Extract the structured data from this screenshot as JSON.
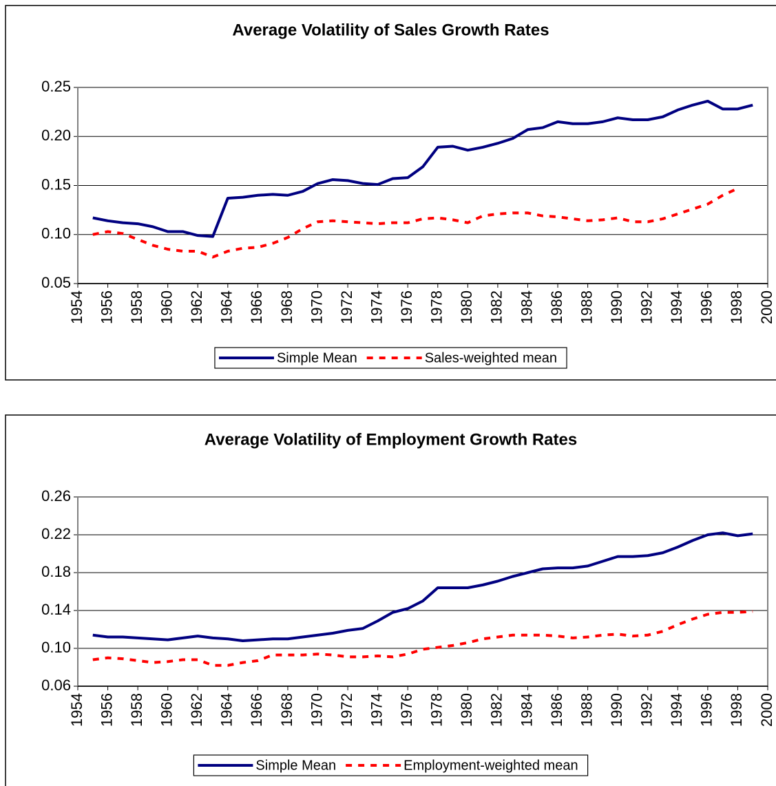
{
  "chart_data": [
    {
      "type": "line",
      "title": "Average Volatility of Sales Growth Rates",
      "x": [
        1955,
        1956,
        1957,
        1958,
        1959,
        1960,
        1961,
        1962,
        1963,
        1964,
        1965,
        1966,
        1967,
        1968,
        1969,
        1970,
        1971,
        1972,
        1973,
        1974,
        1975,
        1976,
        1977,
        1978,
        1979,
        1980,
        1981,
        1982,
        1983,
        1984,
        1985,
        1986,
        1987,
        1988,
        1989,
        1990,
        1991,
        1992,
        1993,
        1994,
        1995,
        1996,
        1997,
        1998,
        1999
      ],
      "series": [
        {
          "name": "Simple Mean",
          "color": "#000080",
          "style": "solid",
          "values": [
            0.117,
            0.114,
            0.112,
            0.111,
            0.108,
            0.103,
            0.103,
            0.099,
            0.098,
            0.137,
            0.138,
            0.14,
            0.141,
            0.14,
            0.144,
            0.152,
            0.156,
            0.155,
            0.152,
            0.151,
            0.157,
            0.158,
            0.169,
            0.189,
            0.19,
            0.186,
            0.189,
            0.193,
            0.198,
            0.207,
            0.209,
            0.215,
            0.213,
            0.213,
            0.215,
            0.219,
            0.217,
            0.217,
            0.22,
            0.227,
            0.232,
            0.236,
            0.228,
            0.228,
            0.232
          ]
        },
        {
          "name": "Sales-weighted mean",
          "color": "#ff0000",
          "style": "dashed",
          "values": [
            0.1,
            0.103,
            0.101,
            0.095,
            0.089,
            0.085,
            0.083,
            0.083,
            0.077,
            0.083,
            0.086,
            0.087,
            0.091,
            0.097,
            0.106,
            0.113,
            0.114,
            0.113,
            0.112,
            0.111,
            0.112,
            0.112,
            0.116,
            0.117,
            0.115,
            0.112,
            0.119,
            0.121,
            0.122,
            0.122,
            0.119,
            0.118,
            0.116,
            0.114,
            0.115,
            0.117,
            0.113,
            0.113,
            0.116,
            0.121,
            0.126,
            0.131,
            0.14,
            0.147,
            null
          ]
        }
      ],
      "xlim": [
        1954,
        2000
      ],
      "xticks": [
        1954,
        1956,
        1958,
        1960,
        1962,
        1964,
        1966,
        1968,
        1970,
        1972,
        1974,
        1976,
        1978,
        1980,
        1982,
        1984,
        1986,
        1988,
        1990,
        1992,
        1994,
        1996,
        1998,
        2000
      ],
      "ylim": [
        0.05,
        0.25
      ],
      "yticks": [
        {
          "value": 0.05,
          "label": "0.05"
        },
        {
          "value": 0.1,
          "label": "0.10"
        },
        0.15,
        {
          "value": 0.2,
          "label": "0.20"
        },
        0.25
      ],
      "grid": true,
      "legend": "bottom"
    },
    {
      "type": "line",
      "title": "Average Volatility of Employment Growth Rates",
      "x": [
        1955,
        1956,
        1957,
        1958,
        1959,
        1960,
        1961,
        1962,
        1963,
        1964,
        1965,
        1966,
        1967,
        1968,
        1969,
        1970,
        1971,
        1972,
        1973,
        1974,
        1975,
        1976,
        1977,
        1978,
        1979,
        1980,
        1981,
        1982,
        1983,
        1984,
        1985,
        1986,
        1987,
        1988,
        1989,
        1990,
        1991,
        1992,
        1993,
        1994,
        1995,
        1996,
        1997,
        1998,
        1999
      ],
      "series": [
        {
          "name": "Simple Mean",
          "color": "#000080",
          "style": "solid",
          "values": [
            0.114,
            0.112,
            0.112,
            0.111,
            0.11,
            0.109,
            0.111,
            0.113,
            0.111,
            0.11,
            0.108,
            0.109,
            0.11,
            0.11,
            0.112,
            0.114,
            0.116,
            0.119,
            0.121,
            0.129,
            0.138,
            0.142,
            0.15,
            0.164,
            0.164,
            0.164,
            0.167,
            0.171,
            0.176,
            0.18,
            0.184,
            0.185,
            0.185,
            0.187,
            0.192,
            0.197,
            0.197,
            0.198,
            0.201,
            0.207,
            0.214,
            0.22,
            0.222,
            0.219,
            0.221
          ]
        },
        {
          "name": "Employment-weighted mean",
          "color": "#ff0000",
          "style": "dashed",
          "values": [
            0.088,
            0.09,
            0.089,
            0.087,
            0.085,
            0.086,
            0.088,
            0.088,
            0.082,
            0.082,
            0.085,
            0.087,
            0.093,
            0.093,
            0.093,
            0.094,
            0.093,
            0.091,
            0.091,
            0.092,
            0.091,
            0.094,
            0.099,
            0.101,
            0.103,
            0.106,
            0.11,
            0.112,
            0.114,
            0.114,
            0.114,
            0.113,
            0.111,
            0.112,
            0.114,
            0.115,
            0.113,
            0.114,
            0.118,
            0.125,
            0.131,
            0.136,
            0.138,
            0.138,
            0.139
          ]
        }
      ],
      "xlim": [
        1954,
        2000
      ],
      "xticks": [
        1954,
        1956,
        1958,
        1960,
        1962,
        1964,
        1966,
        1968,
        1970,
        1972,
        1974,
        1976,
        1978,
        1980,
        1982,
        1984,
        1986,
        1988,
        1990,
        1992,
        1994,
        1996,
        1998,
        2000
      ],
      "ylim": [
        0.06,
        0.26
      ],
      "yticks": [
        0.06,
        {
          "value": 0.1,
          "label": "0.10"
        },
        0.14,
        0.18,
        0.22,
        0.26
      ],
      "grid": true,
      "legend": "bottom"
    }
  ]
}
